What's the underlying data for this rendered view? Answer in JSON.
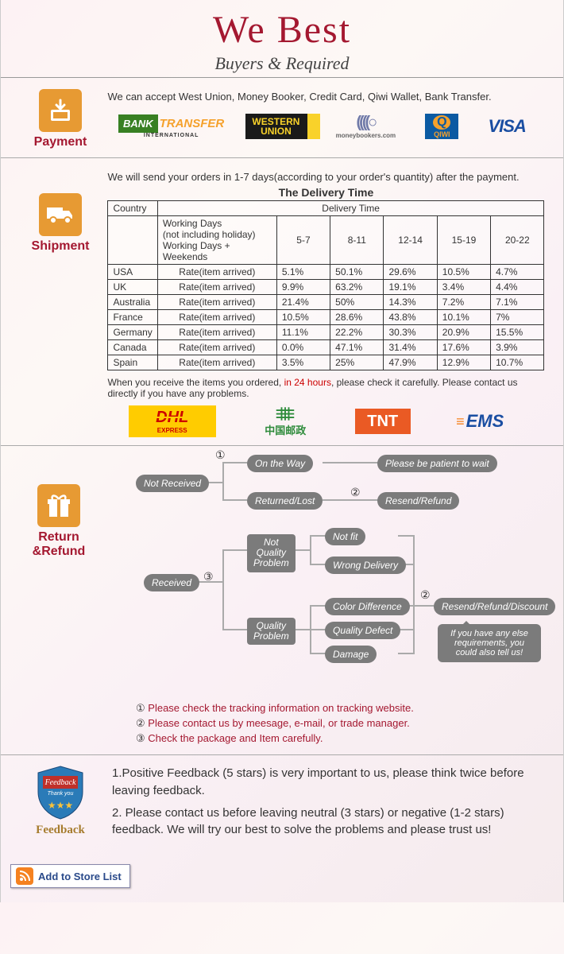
{
  "header": {
    "title": "We   Best",
    "subtitle": "Buyers & Required"
  },
  "payment": {
    "label": "Payment",
    "text": "We can accept West Union, Money Booker, Credit Card, Qiwi Wallet, Bank Transfer.",
    "logos": {
      "bank_transfer_top": "BANK",
      "bank_transfer_main": "TRANSFER",
      "bank_transfer_sub": "INTERNATIONAL",
      "wu_top": "WESTERN",
      "wu_bot": "UNION",
      "mb_glyph": "((((○",
      "mb_sub": "moneybookers.com",
      "qiwi_q": "Q",
      "qiwi_sub": "QIWI",
      "visa": "VISA"
    },
    "colors": {
      "bt_bg": "#388023",
      "bt_main": "#f5a12c",
      "wu_bg": "#1a1a1a",
      "wu_text": "#f9d22a",
      "mb": "#6f79a8",
      "qiwi_bg": "#0b5aa2",
      "qiwi_accent": "#f5a12c",
      "visa": "#1a4ea2"
    }
  },
  "shipment": {
    "label": "Shipment",
    "intro": "We will send your orders in 1-7 days(according to your order's quantity) after the payment.",
    "table_title": "The Delivery Time",
    "col_country": "Country",
    "col_delivery": "Delivery Time",
    "working_days_1": "Working Days",
    "working_days_2": "(not including holiday)",
    "working_days_3": "Working Days + Weekends",
    "day_headers": [
      "5-7",
      "8-11",
      "12-14",
      "15-19",
      "20-22"
    ],
    "rate_label": "Rate(item arrived)",
    "rows": [
      {
        "country": "USA",
        "vals": [
          "5.1%",
          "50.1%",
          "29.6%",
          "10.5%",
          "4.7%"
        ]
      },
      {
        "country": "UK",
        "vals": [
          "9.9%",
          "63.2%",
          "19.1%",
          "3.4%",
          "4.4%"
        ]
      },
      {
        "country": "Australia",
        "vals": [
          "21.4%",
          "50%",
          "14.3%",
          "7.2%",
          "7.1%"
        ]
      },
      {
        "country": "France",
        "vals": [
          "10.5%",
          "28.6%",
          "43.8%",
          "10.1%",
          "7%"
        ]
      },
      {
        "country": "Germany",
        "vals": [
          "11.1%",
          "22.2%",
          "30.3%",
          "20.9%",
          "15.5%"
        ]
      },
      {
        "country": "Canada",
        "vals": [
          "0.0%",
          "47.1%",
          "31.4%",
          "17.6%",
          "3.9%"
        ]
      },
      {
        "country": "Spain",
        "vals": [
          "3.5%",
          "25%",
          "47.9%",
          "12.9%",
          "10.7%"
        ]
      }
    ],
    "post_a": "When you receive the items you ordered, ",
    "post_red": "in 24 hours",
    "post_b": ", please check it carefully. Please contact us directly if you have any problems.",
    "couriers": {
      "dhl": "DHL",
      "dhl_sub": "EXPRESS",
      "china_post": "中国邮政",
      "tnt": "TNT",
      "ems": "EMS"
    },
    "courier_colors": {
      "dhl_bg": "#ffcc00",
      "dhl_text": "#cc0000",
      "cp": "#2e8b3b",
      "tnt_bg": "#ea5a24",
      "ems_text": "#1a4ea2",
      "ems_accent": "#f58220"
    }
  },
  "return": {
    "label": "Return &Refund",
    "nodes": {
      "not_received": "Not Received",
      "on_the_way": "On the Way",
      "returned_lost": "Returned/Lost",
      "please_patient": "Please be patient to wait",
      "resend_refund": "Resend/Refund",
      "received": "Received",
      "not_quality": "Not\nQuality\nProblem",
      "not_fit": "Not fit",
      "wrong_delivery": "Wrong Delivery",
      "quality_problem": "Quality\nProblem",
      "color_diff": "Color Difference",
      "quality_defect": "Quality Defect",
      "damage": "Damage",
      "resend_discount": "Resend/Refund/Discount",
      "else_req": "If you have any else requirements, you could also tell us!"
    },
    "circled": {
      "c1": "①",
      "c2": "②",
      "c3": "③"
    },
    "notes": {
      "n1_pre": "①",
      "n1": "Please check the tracking information on tracking website.",
      "n2_pre": "②",
      "n2": "Please contact us by meesage, e-mail, or trade manager.",
      "n3_pre": "③",
      "n3": "Check the package and Item carefully."
    },
    "pill_bg": "#7b7b7b"
  },
  "feedback": {
    "label": "Feedback",
    "badge_text": "Feedback",
    "badge_sub": "Thank you",
    "line1": "1.Positive Feedback (5 stars) is very important to us, please think twice before leaving feedback.",
    "line2": "2. Please contact us before leaving neutral (3 stars) or negative (1-2 stars) feedback. We will try our best to solve the problems and please trust us!"
  },
  "store": {
    "button": "Add to Store List"
  }
}
